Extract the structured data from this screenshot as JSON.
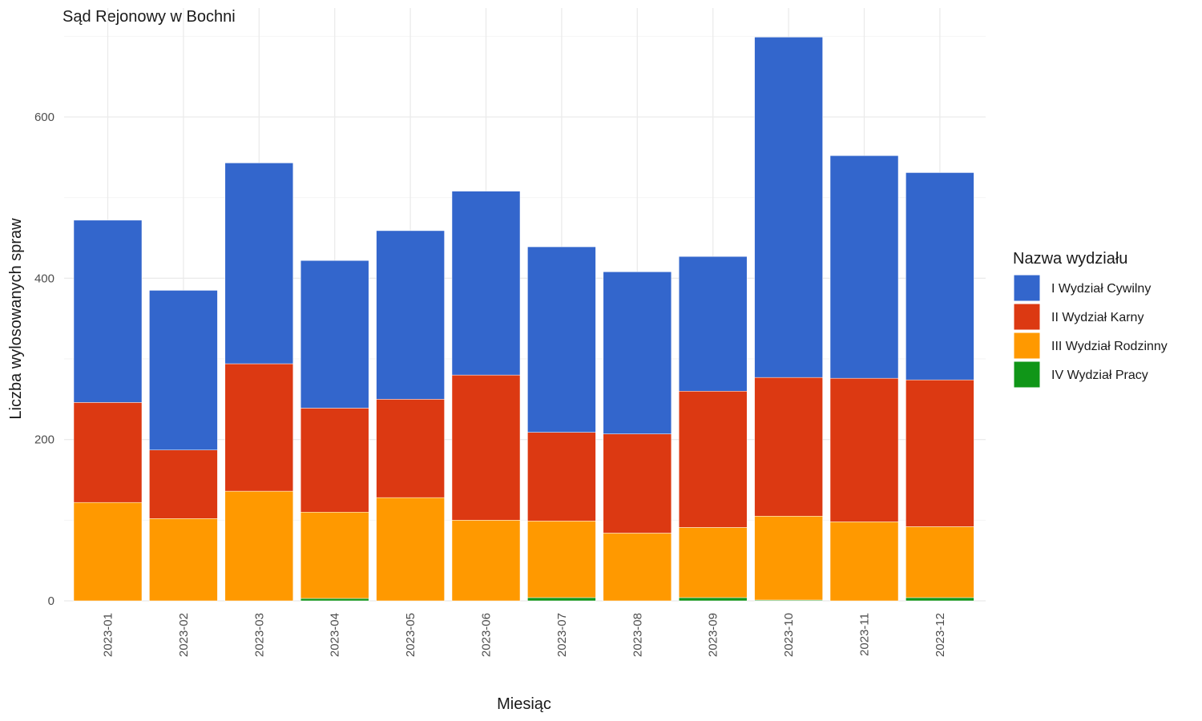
{
  "chart_data": {
    "type": "bar",
    "stacked": true,
    "title": "Sąd Rejonowy w Bochni",
    "xlabel": "Miesiąc",
    "ylabel": "Liczba wylosowanych spraw",
    "ylim": [
      0,
      700
    ],
    "y_ticks": [
      0,
      200,
      400,
      600
    ],
    "grid": true,
    "legend_title": "Nazwa wydziału",
    "legend_position": "right",
    "categories": [
      "2023-01",
      "2023-02",
      "2023-03",
      "2023-04",
      "2023-05",
      "2023-06",
      "2023-07",
      "2023-08",
      "2023-09",
      "2023-10",
      "2023-11",
      "2023-12"
    ],
    "series": [
      {
        "name": "IV Wydział Pracy",
        "color": "#109618",
        "values": [
          0,
          0,
          0,
          3,
          0,
          0,
          4,
          0,
          4,
          1,
          0,
          4
        ]
      },
      {
        "name": "III Wydział Rodzinny",
        "color": "#FF9900",
        "values": [
          122,
          102,
          136,
          107,
          128,
          100,
          95,
          84,
          87,
          104,
          98,
          88
        ]
      },
      {
        "name": "II Wydział Karny",
        "color": "#DC3912",
        "values": [
          124,
          85,
          158,
          129,
          122,
          180,
          110,
          123,
          169,
          172,
          178,
          182
        ]
      },
      {
        "name": "I Wydział Cywilny",
        "color": "#3366CC",
        "values": [
          226,
          198,
          249,
          183,
          209,
          228,
          230,
          201,
          167,
          422,
          276,
          257
        ]
      }
    ],
    "legend_order": [
      "I Wydział Cywilny",
      "II Wydział Karny",
      "III Wydział Rodzinny",
      "IV Wydział Pracy"
    ]
  }
}
